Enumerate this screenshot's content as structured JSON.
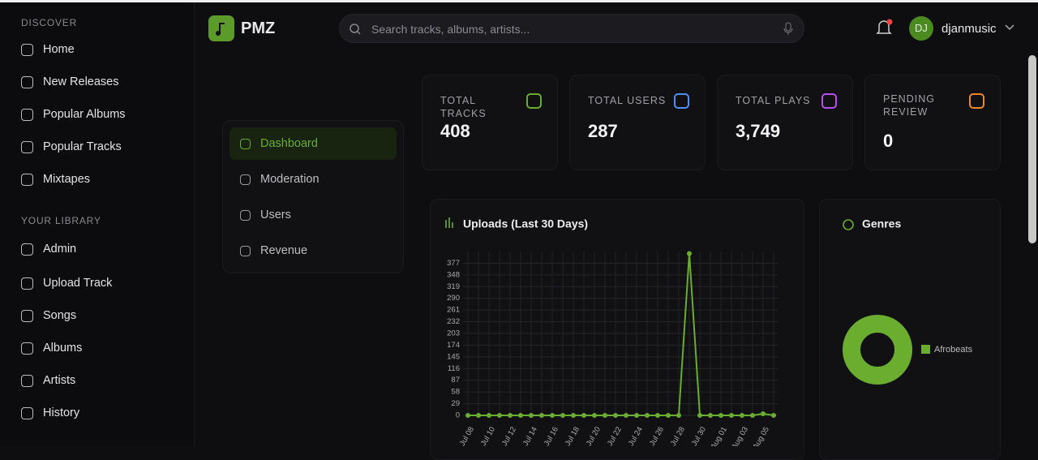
{
  "sidebar": {
    "sections": [
      {
        "title": "DISCOVER",
        "items": [
          "Home",
          "New Releases",
          "Popular Albums",
          "Popular Tracks",
          "Mixtapes"
        ]
      },
      {
        "title": "YOUR LIBRARY",
        "items": [
          "Admin",
          "Upload Track",
          "Songs",
          "Albums",
          "Artists",
          "History"
        ]
      }
    ]
  },
  "header": {
    "logo": "PMZ",
    "search_placeholder": "Search tracks, albums, artists...",
    "avatar": "DJ",
    "user": "djanmusic"
  },
  "admin_nav": [
    "Dashboard",
    "Moderation",
    "Users",
    "Revenue"
  ],
  "stats": [
    {
      "label": "TOTAL TRACKS",
      "value": 408
    },
    {
      "label": "TOTAL USERS",
      "value": 287
    },
    {
      "label": "TOTAL PLAYS",
      "value": {
        "value": 3749,
        "label": "3,749"
      }
    },
    {
      "label": "PENDING REVIEW",
      "value": 0
    }
  ],
  "uploads_chart": {
    "type": "line",
    "title": "Uploads (Last 30 Days)",
    "color": "#6aad2f",
    "grid": true,
    "x": [
      "Jul 08",
      null,
      "Jul 10",
      null,
      "Jul 12",
      null,
      "Jul 14",
      null,
      "Jul 16",
      null,
      "Jul 18",
      null,
      "Jul 20",
      null,
      "Jul 22",
      null,
      "Jul 24",
      null,
      "Jul 26",
      null,
      "Jul 28",
      null,
      "Jul 30",
      null,
      "Aug 01",
      null,
      "Aug 03",
      null,
      "Aug 05",
      null
    ],
    "values": [
      0,
      0,
      0,
      0,
      0,
      0,
      0,
      0,
      0,
      0,
      0,
      0,
      0,
      0,
      0,
      0,
      0,
      0,
      0,
      0,
      0,
      401,
      0,
      0,
      0,
      0,
      0,
      0,
      4,
      0
    ],
    "ylim": [
      0,
      406
    ],
    "yticks": [
      0,
      29,
      58,
      87,
      116,
      145,
      174,
      203,
      232,
      261,
      290,
      319,
      348,
      377
    ]
  },
  "genres_chart": {
    "type": "pie",
    "title": "Genres",
    "categories": [
      "Afrobeats"
    ],
    "values": [
      100
    ],
    "colors": [
      "#6aad2f"
    ]
  }
}
